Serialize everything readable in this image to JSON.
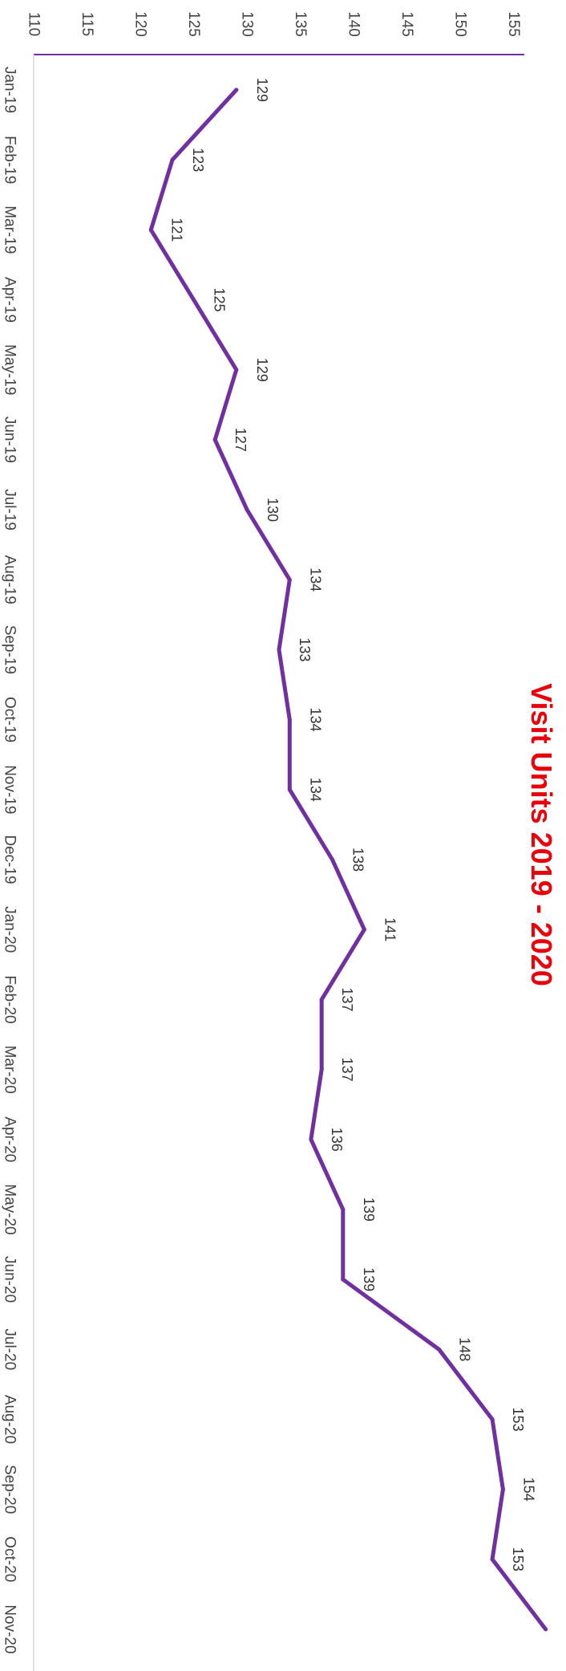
{
  "chart_data": {
    "type": "line",
    "title": "Visit Units 2019 - 2020",
    "xlabel": "",
    "ylabel": "",
    "categories": [
      "Jan-19",
      "Feb-19",
      "Mar-19",
      "Apr-19",
      "May-19",
      "Jun-19",
      "Jul-19",
      "Aug-19",
      "Sep-19",
      "Oct-19",
      "Nov-19",
      "Dec-19",
      "Jan-20",
      "Feb-20",
      "Mar-20",
      "Apr-20",
      "May-20",
      "Jun-20",
      "Jul-20",
      "Aug-20",
      "Sep-20",
      "Oct-20",
      "Nov-20"
    ],
    "series": [
      {
        "values": [
          129,
          123,
          121,
          125,
          129,
          127,
          130,
          134,
          133,
          134,
          134,
          138,
          141,
          137,
          137,
          136,
          139,
          139,
          148,
          153,
          154,
          153,
          158
        ]
      }
    ],
    "ylim": [
      110,
      156
    ],
    "y_ticks": [
      110,
      115,
      120,
      125,
      130,
      135,
      140,
      145,
      150,
      155
    ],
    "data_labels": true,
    "grid": false,
    "legend": "none",
    "orientation": "rotated 90° clockwise"
  },
  "colors": {
    "line": "#7030a0",
    "title": "#e8000b",
    "axis": "#7030a0",
    "tick_text": "#444444",
    "label_text": "#333333"
  }
}
